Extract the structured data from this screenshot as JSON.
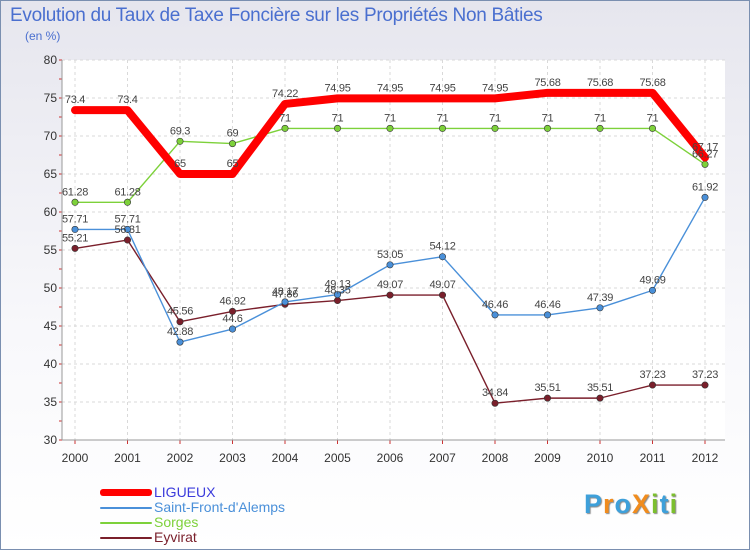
{
  "title": "Evolution du Taux de Taxe Foncière sur les Propriétés Non Bâties",
  "subtitle": "(en %)",
  "brand": {
    "text": "ProXiti",
    "letters": [
      "P",
      "r",
      "o",
      "X",
      "i",
      "t",
      "i"
    ],
    "colors": [
      "#3ea0da",
      "#f08c1e",
      "#3ea0da",
      "#f08c1e",
      "#7cbf2e",
      "#3ea0da",
      "#7cbf2e"
    ]
  },
  "chart_data": {
    "type": "line",
    "title": "Evolution du Taux de Taxe Foncière sur les Propriétés Non Bâties",
    "ylabel": "(en %)",
    "xlabel": "",
    "x": [
      "2000",
      "2001",
      "2002",
      "2003",
      "2004",
      "2005",
      "2006",
      "2007",
      "2008",
      "2009",
      "2010",
      "2011",
      "2012"
    ],
    "ylim": [
      30,
      80
    ],
    "yticks": [
      30,
      35,
      40,
      45,
      50,
      55,
      60,
      65,
      70,
      75,
      80
    ],
    "grid": true,
    "legend": "bottom-left",
    "series": [
      {
        "name": "LIGUEUX",
        "color": "#ff0000",
        "values": [
          73.4,
          73.4,
          65,
          65,
          74.22,
          74.95,
          74.95,
          74.95,
          74.95,
          75.68,
          75.68,
          75.68,
          67.17
        ],
        "labels": [
          "73.4",
          "73.4",
          "65",
          "65",
          "74.22",
          "74.95",
          "74.95",
          "74.95",
          "74.95",
          "75.68",
          "75.68",
          "75.68",
          "67.17"
        ]
      },
      {
        "name": "Saint-Front-d'Alemps",
        "color": "#4a90d9",
        "values": [
          57.71,
          57.71,
          42.88,
          44.6,
          48.17,
          49.13,
          53.05,
          54.12,
          46.46,
          46.46,
          47.39,
          49.69,
          61.92
        ],
        "labels": [
          "57.71",
          "57.71",
          "42.88",
          "44.6",
          "48.17",
          "49.13",
          "53.05",
          "54.12",
          "46.46",
          "46.46",
          "47.39",
          "49.69",
          "61.92"
        ]
      },
      {
        "name": "Sorges",
        "color": "#7dd13a",
        "values": [
          61.28,
          61.28,
          69.3,
          69,
          71,
          71,
          71,
          71,
          71,
          71,
          71,
          71,
          66.27
        ],
        "labels": [
          "61.28",
          "61.28",
          "69.3",
          "69",
          "71",
          "71",
          "71",
          "71",
          "71",
          "71",
          "71",
          "71",
          "66.27"
        ]
      },
      {
        "name": "Eyvirat",
        "color": "#7a1f2b",
        "values": [
          55.21,
          56.31,
          45.56,
          46.92,
          47.86,
          48.35,
          49.07,
          49.07,
          34.84,
          35.51,
          35.51,
          37.23,
          37.23
        ],
        "labels": [
          "55.21",
          "56.31",
          "45.56",
          "46.92",
          "47.86",
          "48.35",
          "49.07",
          "49.07",
          "34.84",
          "35.51",
          "35.51",
          "37.23",
          "37.23"
        ]
      }
    ]
  }
}
